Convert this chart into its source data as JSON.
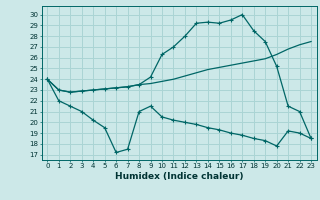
{
  "xlabel": "Humidex (Indice chaleur)",
  "bg_color": "#cce8e8",
  "grid_color": "#aad4d4",
  "line_color": "#006666",
  "xlim": [
    -0.5,
    23.5
  ],
  "ylim": [
    16.5,
    30.8
  ],
  "xticks": [
    0,
    1,
    2,
    3,
    4,
    5,
    6,
    7,
    8,
    9,
    10,
    11,
    12,
    13,
    14,
    15,
    16,
    17,
    18,
    19,
    20,
    21,
    22,
    23
  ],
  "yticks": [
    17,
    18,
    19,
    20,
    21,
    22,
    23,
    24,
    25,
    26,
    27,
    28,
    29,
    30
  ],
  "series1_x": [
    0,
    1,
    2,
    3,
    4,
    5,
    6,
    7,
    8,
    9,
    10,
    11,
    12,
    13,
    14,
    15,
    16,
    17,
    18,
    19,
    20,
    21,
    22,
    23
  ],
  "series1_y": [
    24.0,
    23.0,
    22.8,
    22.9,
    23.0,
    23.1,
    23.2,
    23.3,
    23.5,
    24.2,
    26.3,
    27.0,
    28.0,
    29.2,
    29.3,
    29.2,
    29.5,
    30.0,
    28.5,
    27.5,
    25.2,
    21.5,
    21.0,
    18.5
  ],
  "series2_x": [
    0,
    1,
    2,
    3,
    4,
    5,
    6,
    7,
    8,
    9,
    10,
    11,
    12,
    13,
    14,
    15,
    16,
    17,
    18,
    19,
    20,
    21,
    22,
    23
  ],
  "series2_y": [
    24.0,
    23.0,
    22.8,
    22.9,
    23.0,
    23.1,
    23.2,
    23.3,
    23.5,
    23.6,
    23.8,
    24.0,
    24.3,
    24.6,
    24.9,
    25.1,
    25.3,
    25.5,
    25.7,
    25.9,
    26.3,
    26.8,
    27.2,
    27.5
  ],
  "series3_x": [
    0,
    1,
    2,
    3,
    4,
    5,
    6,
    7,
    8,
    9,
    10,
    11,
    12,
    13,
    14,
    15,
    16,
    17,
    18,
    19,
    20,
    21,
    22,
    23
  ],
  "series3_y": [
    24.0,
    22.0,
    21.5,
    21.0,
    20.2,
    19.5,
    17.2,
    17.5,
    21.0,
    21.5,
    20.5,
    20.2,
    20.0,
    19.8,
    19.5,
    19.3,
    19.0,
    18.8,
    18.5,
    18.3,
    17.8,
    19.2,
    19.0,
    18.5
  ]
}
